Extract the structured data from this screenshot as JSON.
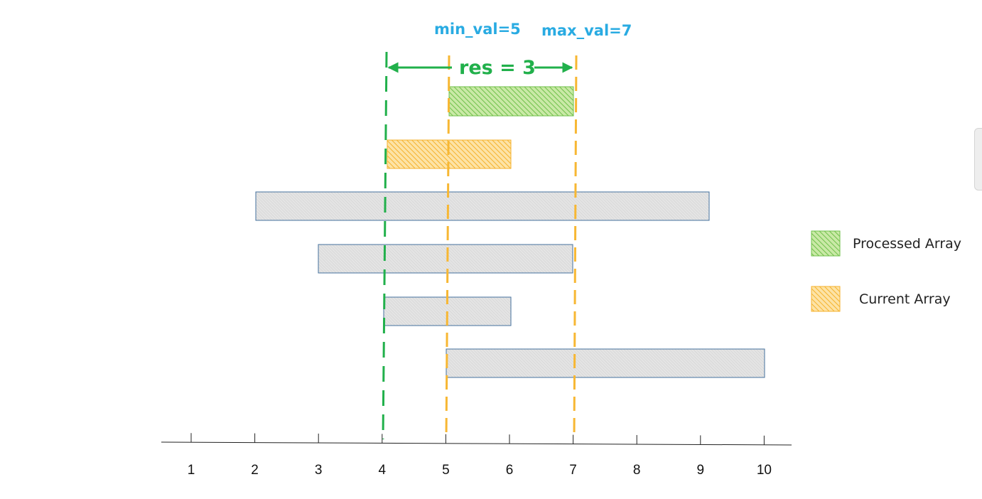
{
  "colors": {
    "green": "#21b04b",
    "orange": "#f7b733",
    "blue_label": "#29abe2",
    "grey_bar_fill": "#dcdcdc",
    "grey_bar_stroke": "#44719e",
    "axis": "#222222"
  },
  "labels": {
    "min_val": "min_val=5",
    "max_val": "max_val=7",
    "res": "res = 3"
  },
  "legend": [
    {
      "label": "Processed Array",
      "color": "green"
    },
    {
      "label": "Current Array",
      "color": "orange"
    }
  ],
  "axis": {
    "ticks": [
      "1",
      "2",
      "3",
      "4",
      "5",
      "6",
      "7",
      "8",
      "9",
      "10"
    ]
  },
  "lines": {
    "res_line": 4,
    "min_line": 5,
    "max_line": 7
  },
  "processed_interval": [
    5,
    7
  ],
  "current_interval": [
    4,
    6
  ],
  "intervals": [
    [
      2,
      9.1
    ],
    [
      3,
      7
    ],
    [
      4,
      6
    ],
    [
      5,
      10
    ]
  ]
}
